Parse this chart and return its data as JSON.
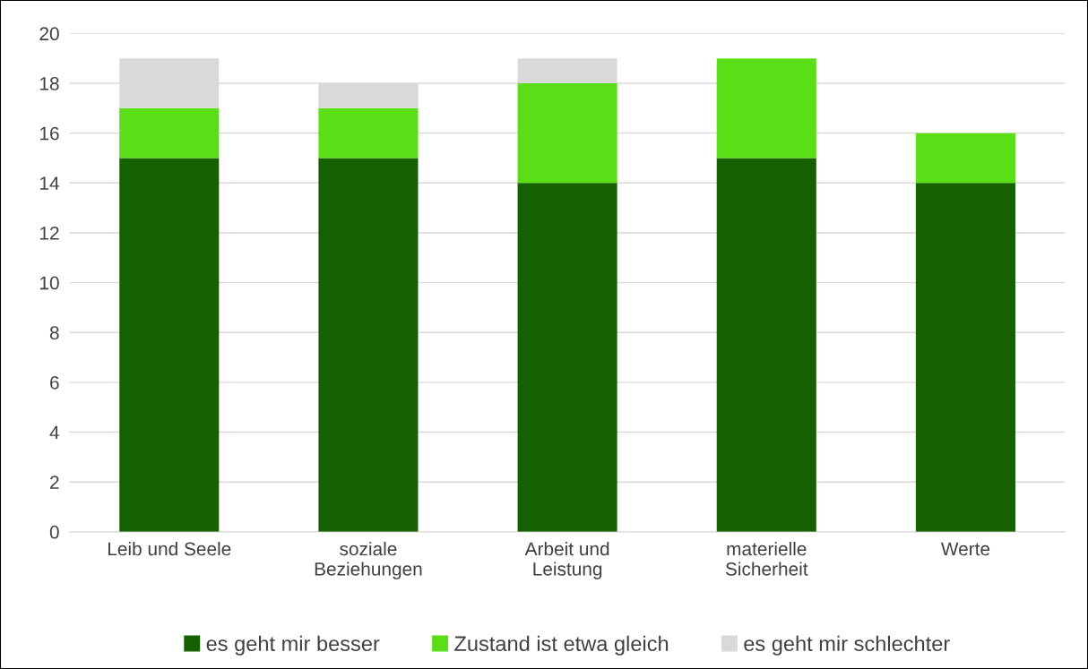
{
  "chart_data": {
    "type": "bar",
    "stacked": true,
    "categories": [
      "Leib und Seele",
      "soziale\nBeziehungen",
      "Arbeit und\nLeistung",
      "materielle\nSicherheit",
      "Werte"
    ],
    "series": [
      {
        "name": "es geht mir besser",
        "color": "#156000",
        "values": [
          15,
          15,
          14,
          15,
          14
        ]
      },
      {
        "name": "Zustand ist etwa gleich",
        "color": "#5ade15",
        "values": [
          2,
          2,
          4,
          4,
          2
        ]
      },
      {
        "name": "es geht mir schlechter",
        "color": "#d9d9d9",
        "values": [
          2,
          1,
          1,
          0,
          0
        ]
      }
    ],
    "ylim": [
      0,
      20
    ],
    "yticks": [
      0,
      2,
      4,
      6,
      8,
      10,
      12,
      14,
      16,
      18,
      20
    ],
    "grid": "y",
    "legend": "bottom"
  }
}
